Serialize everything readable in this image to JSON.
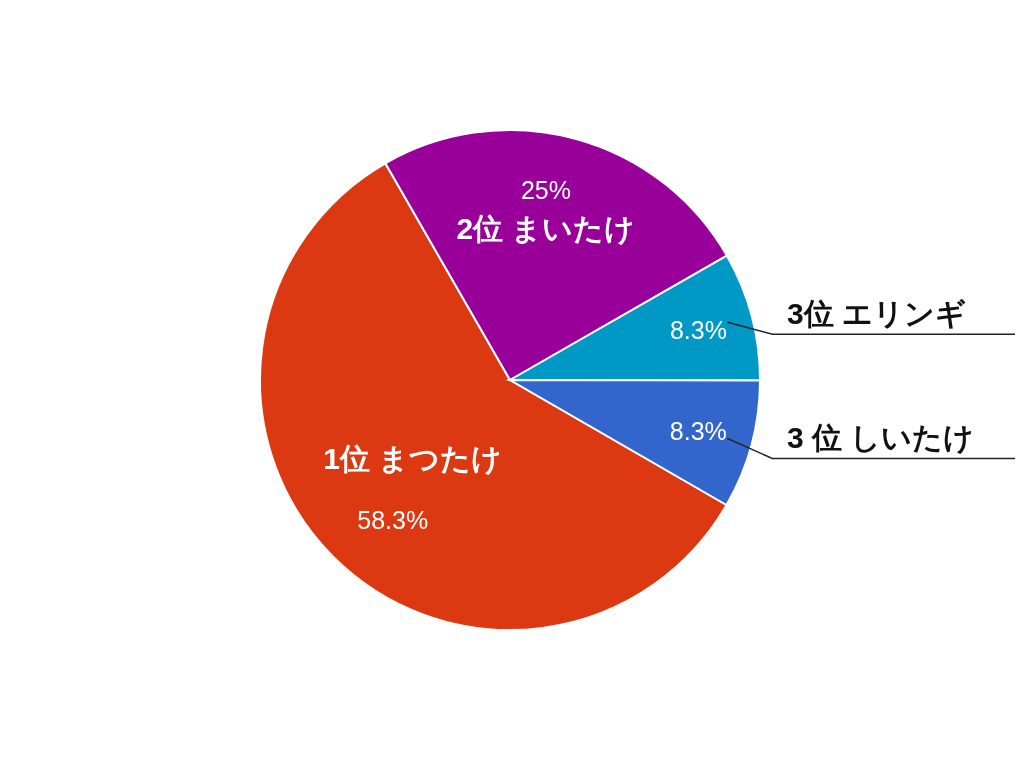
{
  "chart_data": {
    "type": "pie",
    "categories": [
      "1位  まつたけ",
      "2位  まいたけ",
      "3位  エリンギ",
      "3 位  しいたけ"
    ],
    "values": [
      58.3,
      25,
      8.3,
      8.3
    ],
    "colors": [
      "#dc3912",
      "#990099",
      "#0099c6",
      "#3366cc"
    ],
    "value_labels": [
      "58.3%",
      "25%",
      "8.3%",
      "8.3%"
    ]
  }
}
